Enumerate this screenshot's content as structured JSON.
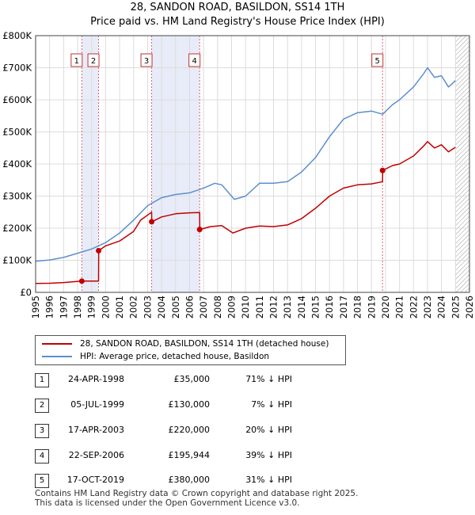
{
  "title": "28, SANDON ROAD, BASILDON, SS14 1TH",
  "subtitle": "Price paid vs. HM Land Registry's House Price Index (HPI)",
  "chart_data": {
    "type": "line",
    "xlim": [
      1995,
      2026
    ],
    "ylim": [
      0,
      800000
    ],
    "y_ticks": [
      0,
      100000,
      200000,
      300000,
      400000,
      500000,
      600000,
      700000,
      800000
    ],
    "y_tick_labels": [
      "£0",
      "£100K",
      "£200K",
      "£300K",
      "£400K",
      "£500K",
      "£600K",
      "£700K",
      "£800K"
    ],
    "x_ticks": [
      1995,
      1996,
      1997,
      1998,
      1999,
      2000,
      2001,
      2002,
      2003,
      2004,
      2005,
      2006,
      2007,
      2008,
      2009,
      2010,
      2011,
      2012,
      2013,
      2014,
      2015,
      2016,
      2017,
      2018,
      2019,
      2020,
      2021,
      2022,
      2023,
      2024,
      2025,
      2026
    ],
    "x_tick_labels": [
      "1995",
      "1996",
      "1997",
      "1998",
      "1999",
      "2000",
      "2001",
      "2002",
      "2003",
      "2004",
      "2005",
      "2006",
      "2007",
      "2008",
      "2009",
      "2010",
      "2011",
      "2012",
      "2013",
      "2014",
      "2015",
      "2016",
      "2017",
      "2018",
      "2019",
      "2020",
      "2021",
      "2022",
      "2023",
      "2024",
      "2025",
      "2026"
    ],
    "grid": true,
    "hatched_after": 2025.0,
    "colors": {
      "property": "#c00000",
      "hpi": "#5b8fd0",
      "shade": "#e8ecf8",
      "vline": "#e06070"
    },
    "series": [
      {
        "name": "28, SANDON ROAD, BASILDON, SS14 1TH (detached house)",
        "x": [
          1995.0,
          1996.0,
          1997.0,
          1998.3,
          1998.31,
          1999.5,
          1999.51,
          2000.0,
          2001.0,
          2002.0,
          2002.5,
          2003.29,
          2003.3,
          2004.0,
          2005.0,
          2006.0,
          2006.72,
          2006.73,
          2007.5,
          2008.3,
          2009.1,
          2010.0,
          2011.0,
          2012.0,
          2013.0,
          2014.0,
          2015.0,
          2016.0,
          2017.0,
          2018.0,
          2019.0,
          2019.79,
          2019.8,
          2020.5,
          2021.0,
          2022.0,
          2022.7,
          2023.0,
          2023.5,
          2024.0,
          2024.5,
          2025.0
        ],
        "values": [
          28000,
          28500,
          30500,
          35000,
          35000,
          35000,
          130000,
          145000,
          160000,
          190000,
          225000,
          250000,
          220000,
          235000,
          245000,
          248000,
          249000,
          195944,
          205000,
          208000,
          185000,
          200000,
          207000,
          205000,
          210000,
          230000,
          262000,
          300000,
          325000,
          335000,
          338000,
          345000,
          380000,
          395000,
          400000,
          425000,
          455000,
          470000,
          450000,
          460000,
          438000,
          452000
        ]
      },
      {
        "name": "HPI: Average price, detached house, Basildon",
        "x": [
          1995.0,
          1996.0,
          1997.0,
          1998.0,
          1999.0,
          2000.0,
          2001.0,
          2002.0,
          2003.0,
          2004.0,
          2005.0,
          2006.0,
          2007.0,
          2007.8,
          2008.3,
          2009.2,
          2010.0,
          2011.0,
          2012.0,
          2013.0,
          2014.0,
          2015.0,
          2016.0,
          2017.0,
          2018.0,
          2019.0,
          2019.8,
          2020.5,
          2021.0,
          2022.0,
          2022.7,
          2023.0,
          2023.5,
          2024.0,
          2024.5,
          2025.0
        ],
        "values": [
          97000,
          101000,
          109000,
          122000,
          135000,
          155000,
          185000,
          225000,
          270000,
          295000,
          305000,
          310000,
          325000,
          340000,
          335000,
          290000,
          300000,
          340000,
          340000,
          345000,
          375000,
          420000,
          485000,
          540000,
          560000,
          565000,
          555000,
          585000,
          600000,
          640000,
          680000,
          700000,
          670000,
          675000,
          640000,
          660000
        ]
      }
    ],
    "sale_markers": [
      {
        "label": "1",
        "x": 1998.3,
        "price": 35000
      },
      {
        "label": "2",
        "x": 1999.5,
        "price": 130000
      },
      {
        "label": "3",
        "x": 2003.29,
        "price": 220000
      },
      {
        "label": "4",
        "x": 2006.72,
        "price": 195944
      },
      {
        "label": "5",
        "x": 2019.79,
        "price": 380000
      }
    ],
    "shaded_ranges": [
      [
        1998.3,
        1999.5
      ],
      [
        2003.29,
        2006.72
      ]
    ]
  },
  "legend": {
    "items": [
      {
        "label": "28, SANDON ROAD, BASILDON, SS14 1TH (detached house)"
      },
      {
        "label": "HPI: Average price, detached house, Basildon"
      }
    ]
  },
  "sales": [
    {
      "num": "1",
      "date": "24-APR-1998",
      "price": "£35,000",
      "hpi": "71% ↓ HPI"
    },
    {
      "num": "2",
      "date": "05-JUL-1999",
      "price": "£130,000",
      "hpi": "7% ↓ HPI"
    },
    {
      "num": "3",
      "date": "17-APR-2003",
      "price": "£220,000",
      "hpi": "20% ↓ HPI"
    },
    {
      "num": "4",
      "date": "22-SEP-2006",
      "price": "£195,944",
      "hpi": "39% ↓ HPI"
    },
    {
      "num": "5",
      "date": "17-OCT-2019",
      "price": "£380,000",
      "hpi": "31% ↓ HPI"
    }
  ],
  "footer": {
    "line1": "Contains HM Land Registry data © Crown copyright and database right 2025.",
    "line2": "This data is licensed under the Open Government Licence v3.0."
  }
}
